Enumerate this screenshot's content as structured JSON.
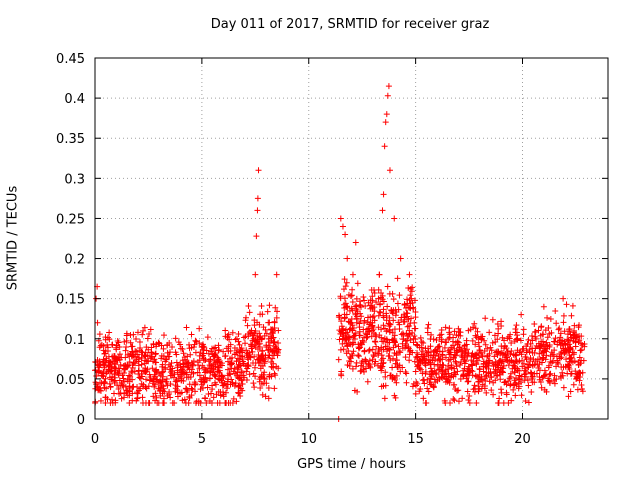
{
  "chart_data": {
    "type": "scatter",
    "title": "Day 011 of 2017, SRMTID for receiver graz",
    "xlabel": "GPS time / hours",
    "ylabel": "SRMTID / TECUs",
    "xlim": [
      0,
      24
    ],
    "ylim": [
      0,
      0.45
    ],
    "xticks": [
      0,
      5,
      10,
      15,
      20
    ],
    "xtick_labels": [
      "0",
      "5",
      "10",
      "15",
      "20"
    ],
    "yticks": [
      0,
      0.05,
      0.1,
      0.15,
      0.2,
      0.25,
      0.3,
      0.35,
      0.4,
      0.45
    ],
    "ytick_labels": [
      "0",
      "0.05",
      "0.1",
      "0.15",
      "0.2",
      "0.25",
      "0.3",
      "0.35",
      "0.4",
      "0.45"
    ],
    "grid": true,
    "marker": "+",
    "marker_color": "#ff0000",
    "segments": [
      {
        "x_start": 0.0,
        "x_end": 8.6,
        "y_min": 0.02,
        "y_max": 0.18,
        "baseline": 0.06
      },
      {
        "x_start": 11.4,
        "x_end": 22.9,
        "y_min": 0.02,
        "y_max": 0.18,
        "baseline": 0.07
      }
    ],
    "peaks": [
      {
        "x": 0.1,
        "y": 0.165
      },
      {
        "x": 0.05,
        "y": 0.15
      },
      {
        "x": 0.12,
        "y": 0.12
      },
      {
        "x": 7.5,
        "y": 0.18
      },
      {
        "x": 7.55,
        "y": 0.228
      },
      {
        "x": 7.6,
        "y": 0.26
      },
      {
        "x": 7.62,
        "y": 0.275
      },
      {
        "x": 7.65,
        "y": 0.31
      },
      {
        "x": 8.5,
        "y": 0.18
      },
      {
        "x": 11.4,
        "y": 0.0
      },
      {
        "x": 11.5,
        "y": 0.25
      },
      {
        "x": 11.6,
        "y": 0.24
      },
      {
        "x": 11.7,
        "y": 0.23
      },
      {
        "x": 11.8,
        "y": 0.2
      },
      {
        "x": 12.2,
        "y": 0.22
      },
      {
        "x": 13.3,
        "y": 0.18
      },
      {
        "x": 13.45,
        "y": 0.26
      },
      {
        "x": 13.5,
        "y": 0.28
      },
      {
        "x": 13.55,
        "y": 0.34
      },
      {
        "x": 13.6,
        "y": 0.37
      },
      {
        "x": 13.65,
        "y": 0.38
      },
      {
        "x": 13.7,
        "y": 0.403
      },
      {
        "x": 13.75,
        "y": 0.415
      },
      {
        "x": 13.8,
        "y": 0.31
      },
      {
        "x": 14.0,
        "y": 0.25
      },
      {
        "x": 14.3,
        "y": 0.2
      },
      {
        "x": 14.8,
        "y": 0.15
      },
      {
        "x": 21.0,
        "y": 0.14
      },
      {
        "x": 21.9,
        "y": 0.15
      }
    ]
  }
}
